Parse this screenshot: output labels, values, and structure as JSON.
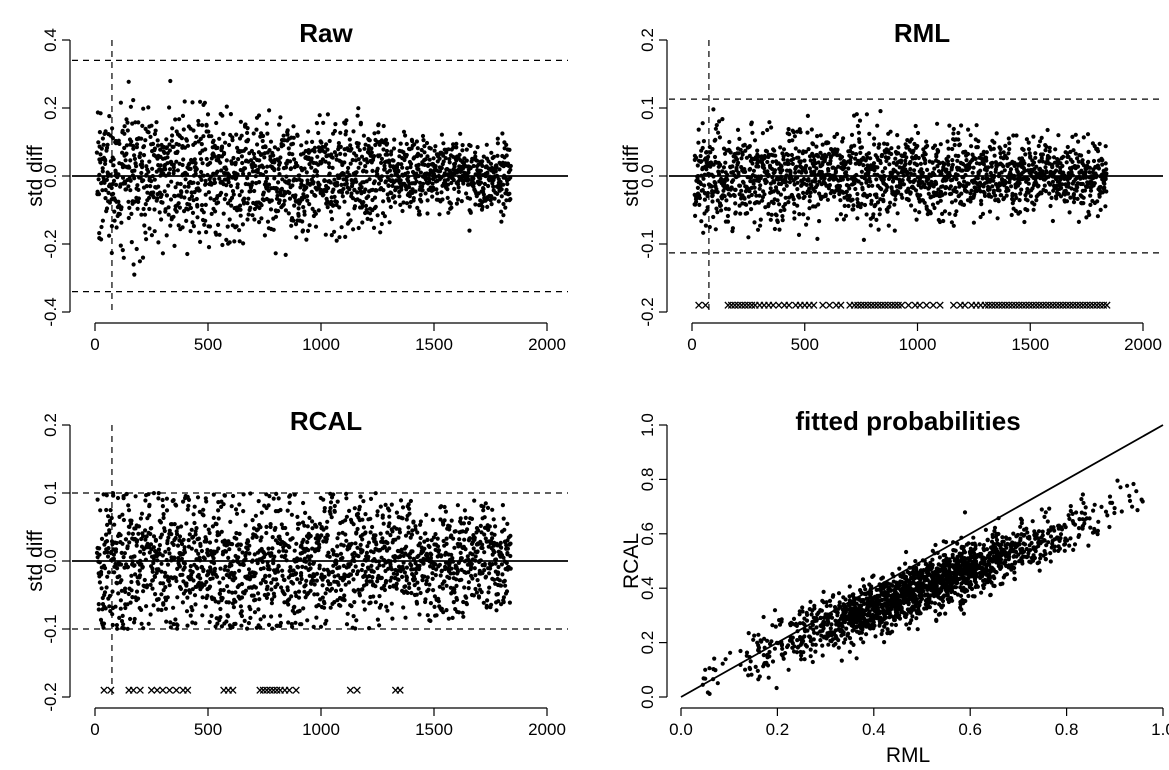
{
  "chart_data": [
    {
      "id": "raw",
      "type": "scatter",
      "title": "Raw",
      "ylabel": "std diff",
      "xlabel": "",
      "xlim": [
        0,
        2000
      ],
      "ylim": [
        -0.4,
        0.4
      ],
      "x_ticks": [
        0,
        500,
        1000,
        1500,
        2000
      ],
      "y_ticks": [
        -0.4,
        -0.2,
        0.0,
        0.2,
        0.4
      ],
      "hlines_solid": [
        0
      ],
      "hlines_dashed": [
        0.34,
        -0.34
      ],
      "vline_dashed": 75,
      "n_points": 1840,
      "scatter_summary": {
        "segments": [
          {
            "x_range": [
              0,
              500
            ],
            "center": 0.0,
            "spread": 0.1,
            "max_abs": 0.32
          },
          {
            "x_range": [
              500,
              900
            ],
            "center": 0.0,
            "spread": 0.09,
            "max_abs": 0.3
          },
          {
            "x_range": [
              900,
              1300
            ],
            "center": 0.0,
            "spread": 0.08,
            "max_abs": 0.26
          },
          {
            "x_range": [
              1300,
              1840
            ],
            "center": 0.0,
            "spread": 0.05,
            "max_abs": 0.21
          }
        ]
      },
      "cross_markers": [],
      "cross_y": null
    },
    {
      "id": "rml",
      "type": "scatter",
      "title": "RML",
      "ylabel": "std diff",
      "xlabel": "",
      "xlim": [
        0,
        2000
      ],
      "ylim": [
        -0.2,
        0.2
      ],
      "x_ticks": [
        0,
        500,
        1000,
        1500,
        2000
      ],
      "y_ticks": [
        -0.2,
        -0.1,
        0.0,
        0.1,
        0.2
      ],
      "hlines_solid": [
        0
      ],
      "hlines_dashed": [
        0.113,
        -0.113
      ],
      "vline_dashed": 75,
      "n_points": 1840,
      "scatter_summary": {
        "segments": [
          {
            "x_range": [
              0,
              500
            ],
            "center": 0.0,
            "spread": 0.035,
            "max_abs": 0.1
          },
          {
            "x_range": [
              500,
              900
            ],
            "center": 0.0,
            "spread": 0.032,
            "max_abs": 0.1
          },
          {
            "x_range": [
              900,
              1300
            ],
            "center": 0.0,
            "spread": 0.03,
            "max_abs": 0.08
          },
          {
            "x_range": [
              1300,
              1840
            ],
            "center": 0.0,
            "spread": 0.025,
            "max_abs": 0.07
          }
        ]
      },
      "cross_markers": [
        30,
        60,
        160,
        175,
        190,
        205,
        220,
        235,
        250,
        265,
        280,
        300,
        320,
        340,
        360,
        385,
        410,
        430,
        460,
        480,
        500,
        520,
        540,
        580,
        610,
        640,
        660,
        700,
        720,
        735,
        750,
        765,
        780,
        795,
        810,
        825,
        840,
        855,
        870,
        885,
        900,
        915,
        930,
        960,
        990,
        1010,
        1040,
        1070,
        1100,
        1160,
        1190,
        1210,
        1240,
        1260,
        1280,
        1300,
        1315,
        1330,
        1345,
        1360,
        1375,
        1390,
        1405,
        1420,
        1435,
        1450,
        1465,
        1480,
        1495,
        1510,
        1525,
        1540,
        1555,
        1570,
        1585,
        1600,
        1615,
        1630,
        1645,
        1660,
        1675,
        1690,
        1705,
        1720,
        1735,
        1750,
        1765,
        1780,
        1795,
        1810,
        1825,
        1840
      ],
      "cross_y": -0.19
    },
    {
      "id": "rcal",
      "type": "scatter",
      "title": "RCAL",
      "ylabel": "std diff",
      "xlabel": "",
      "xlim": [
        0,
        2000
      ],
      "ylim": [
        -0.2,
        0.2
      ],
      "x_ticks": [
        0,
        500,
        1000,
        1500,
        2000
      ],
      "y_ticks": [
        -0.2,
        -0.1,
        0.0,
        0.1,
        0.2
      ],
      "hlines_solid": [
        0
      ],
      "hlines_dashed": [
        0.1,
        -0.1
      ],
      "vline_dashed": 75,
      "n_points": 1840,
      "scatter_summary": {
        "segments": [
          {
            "x_range": [
              0,
              500
            ],
            "center": 0.0,
            "spread": 0.055,
            "max_abs": 0.1
          },
          {
            "x_range": [
              500,
              900
            ],
            "center": -0.01,
            "spread": 0.055,
            "max_abs": 0.1
          },
          {
            "x_range": [
              900,
              1300
            ],
            "center": 0.0,
            "spread": 0.05,
            "max_abs": 0.1
          },
          {
            "x_range": [
              1300,
              1840
            ],
            "center": 0.0,
            "spread": 0.04,
            "max_abs": 0.09
          }
        ]
      },
      "cross_markers": [
        40,
        70,
        150,
        170,
        200,
        250,
        275,
        300,
        330,
        360,
        390,
        410,
        570,
        590,
        610,
        730,
        745,
        760,
        775,
        790,
        805,
        820,
        840,
        860,
        890,
        1130,
        1160,
        1330,
        1350
      ],
      "cross_y": -0.19
    },
    {
      "id": "fitted",
      "type": "scatter",
      "title": "fitted probabilities",
      "xlabel": "RML",
      "ylabel": "RCAL",
      "xlim": [
        0.0,
        1.0
      ],
      "ylim": [
        0.0,
        1.0
      ],
      "x_ticks": [
        0.0,
        0.2,
        0.4,
        0.6,
        0.8,
        1.0
      ],
      "y_ticks": [
        0.0,
        0.2,
        0.4,
        0.6,
        0.8,
        1.0
      ],
      "abline": {
        "intercept": 0,
        "slope": 1
      },
      "n_points": 1840,
      "scatter_summary": {
        "x_range": [
          0.04,
          0.96
        ],
        "relation": "RCAL ≈ 0.05 + 0.70 × RML",
        "residual_spread": 0.05
      }
    }
  ]
}
